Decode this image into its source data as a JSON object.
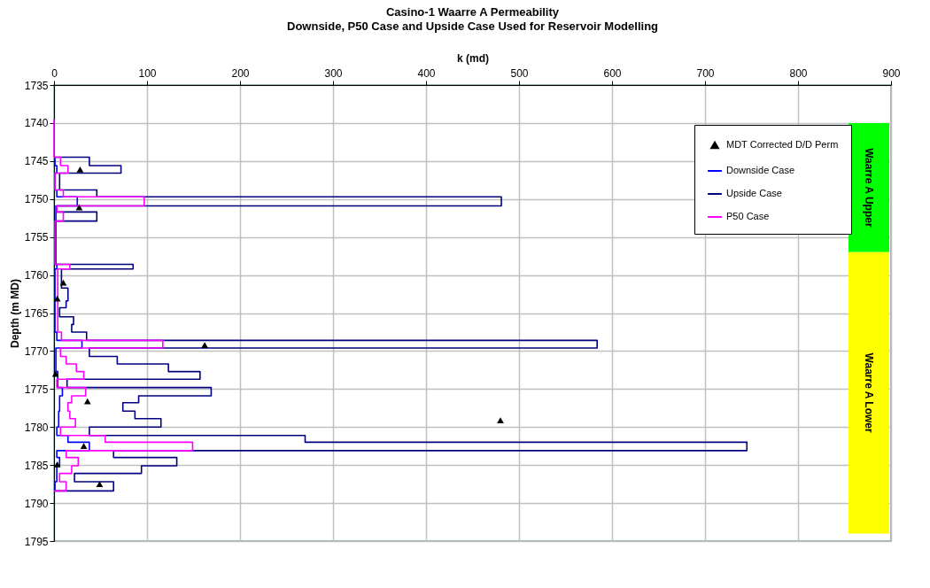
{
  "chart_data": {
    "type": "line",
    "title": "Casino-1 Waarre A Permeability",
    "subtitle": "Downside, P50 Case and Upside Case Used for Reservoir Modelling",
    "xlabel": "k (md)",
    "ylabel": "Depth (m MD)",
    "xlim": [
      0,
      900
    ],
    "xticks": [
      0,
      100,
      200,
      300,
      400,
      500,
      600,
      700,
      800,
      900
    ],
    "ylim": [
      1795,
      1735
    ],
    "yticks": [
      1735,
      1740,
      1745,
      1750,
      1755,
      1760,
      1765,
      1770,
      1775,
      1780,
      1785,
      1790,
      1795
    ],
    "grid": true,
    "legend": "top right",
    "bands": [
      {
        "axis": "y",
        "from": 1740,
        "to": 1757,
        "label": "Waarre A Upper",
        "color": "#00ff00"
      },
      {
        "axis": "y",
        "from": 1757,
        "to": 1794,
        "label": "Waarre A Lower",
        "color": "#ffff00"
      }
    ],
    "series": [
      {
        "name": "MDT Corrected D/D Perm",
        "type": "scatter",
        "marker": "triangle",
        "color": "#000000",
        "x": [
          28,
          27,
          10,
          3.5,
          162,
          1.6,
          36,
          480,
          32,
          3.5,
          49
        ],
        "values": [
          1746.1,
          1751.1,
          1761.0,
          1763.1,
          1769.2,
          1773.0,
          1776.6,
          1779.1,
          1782.5,
          1784.9,
          1787.5
        ]
      },
      {
        "name": "Downside Case",
        "type": "line",
        "color": "#0000ff",
        "x": [
          1,
          1,
          3,
          3,
          1,
          1,
          3,
          3,
          25,
          25,
          2,
          2,
          1,
          1,
          3,
          3,
          1,
          1,
          3,
          3,
          30,
          30,
          2,
          2,
          4,
          4,
          9,
          9,
          6,
          6,
          5,
          5,
          3,
          3,
          15,
          15,
          38,
          38,
          3,
          3,
          6,
          6,
          3,
          3,
          1,
          1
        ],
        "values": [
          1744.5,
          1745.6,
          1745.6,
          1746.6,
          1746.6,
          1748.8,
          1748.8,
          1749.7,
          1749.7,
          1750.9,
          1750.9,
          1752.9,
          1752.9,
          1758.6,
          1758.6,
          1759.2,
          1759.2,
          1767.5,
          1767.5,
          1768.6,
          1768.6,
          1769.6,
          1769.6,
          1772.7,
          1772.7,
          1774.8,
          1774.8,
          1775.9,
          1775.9,
          1777.9,
          1777.9,
          1780.0,
          1780.0,
          1781.1,
          1781.1,
          1782.0,
          1782.0,
          1783.1,
          1783.1,
          1784.0,
          1784.0,
          1785.1,
          1785.1,
          1787.2,
          1787.2,
          1788.4
        ]
      },
      {
        "name": "Upside Case",
        "type": "line",
        "color": "#000080",
        "x": [
          0,
          38,
          38,
          72,
          72,
          6,
          6,
          46,
          46,
          481,
          481,
          3,
          3,
          46,
          46,
          2,
          2,
          85,
          85,
          8,
          8,
          15,
          15,
          13,
          13,
          6,
          6,
          21,
          21,
          19,
          19,
          35,
          35,
          584,
          584,
          38,
          38,
          68,
          68,
          123,
          123,
          157,
          157,
          14,
          14,
          169,
          169,
          91,
          91,
          74,
          74,
          87,
          87,
          115,
          115,
          38,
          38,
          270,
          270,
          745,
          745,
          64,
          64,
          132,
          132,
          94,
          94,
          22,
          22,
          64,
          64,
          0
        ],
        "values": [
          1744.5,
          1744.5,
          1745.6,
          1745.6,
          1746.6,
          1746.6,
          1748.8,
          1748.8,
          1749.7,
          1749.7,
          1750.9,
          1750.9,
          1751.7,
          1751.7,
          1752.9,
          1752.9,
          1758.6,
          1758.6,
          1759.2,
          1759.2,
          1761.7,
          1761.7,
          1763.4,
          1763.4,
          1764.3,
          1764.3,
          1765.5,
          1765.5,
          1766.5,
          1766.5,
          1767.5,
          1767.5,
          1768.6,
          1768.6,
          1769.6,
          1769.6,
          1770.7,
          1770.7,
          1771.7,
          1771.7,
          1772.7,
          1772.7,
          1773.7,
          1773.7,
          1774.8,
          1774.8,
          1775.9,
          1775.9,
          1776.8,
          1776.8,
          1777.9,
          1777.9,
          1778.9,
          1778.9,
          1780.0,
          1780.0,
          1781.1,
          1781.1,
          1782.0,
          1782.0,
          1783.1,
          1783.1,
          1784.0,
          1784.0,
          1785.1,
          1785.1,
          1786.1,
          1786.1,
          1787.2,
          1787.2,
          1788.4,
          1788.4
        ]
      },
      {
        "name": "P50 Case",
        "type": "line",
        "color": "#ff00ff",
        "x": [
          0,
          0,
          7,
          7,
          15,
          15,
          1,
          1,
          10,
          10,
          97,
          97,
          3,
          3,
          10,
          10,
          1,
          1,
          17,
          17,
          4,
          4,
          8,
          8,
          117,
          117,
          7,
          7,
          13,
          13,
          24,
          24,
          32,
          32,
          3,
          3,
          34,
          34,
          19,
          19,
          15,
          15,
          17,
          17,
          23,
          23,
          7,
          7,
          55,
          55,
          149,
          149,
          13,
          13,
          26,
          26,
          19,
          19,
          6,
          6,
          13,
          13,
          0
        ],
        "values": [
          1739.5,
          1744.5,
          1744.5,
          1745.6,
          1745.6,
          1746.6,
          1746.6,
          1748.8,
          1748.8,
          1749.7,
          1749.7,
          1750.9,
          1750.9,
          1751.7,
          1751.7,
          1752.9,
          1752.9,
          1758.6,
          1758.6,
          1759.2,
          1759.2,
          1767.5,
          1767.5,
          1768.6,
          1768.6,
          1769.6,
          1769.6,
          1770.7,
          1770.7,
          1771.7,
          1771.7,
          1772.7,
          1772.7,
          1773.7,
          1773.7,
          1774.8,
          1774.8,
          1775.9,
          1775.9,
          1776.8,
          1776.8,
          1777.9,
          1777.9,
          1778.9,
          1778.9,
          1780.0,
          1780.0,
          1781.1,
          1781.1,
          1782.0,
          1782.0,
          1783.1,
          1783.1,
          1784.0,
          1784.0,
          1785.1,
          1785.1,
          1786.1,
          1786.1,
          1787.2,
          1787.2,
          1788.4,
          1788.4
        ]
      }
    ]
  }
}
